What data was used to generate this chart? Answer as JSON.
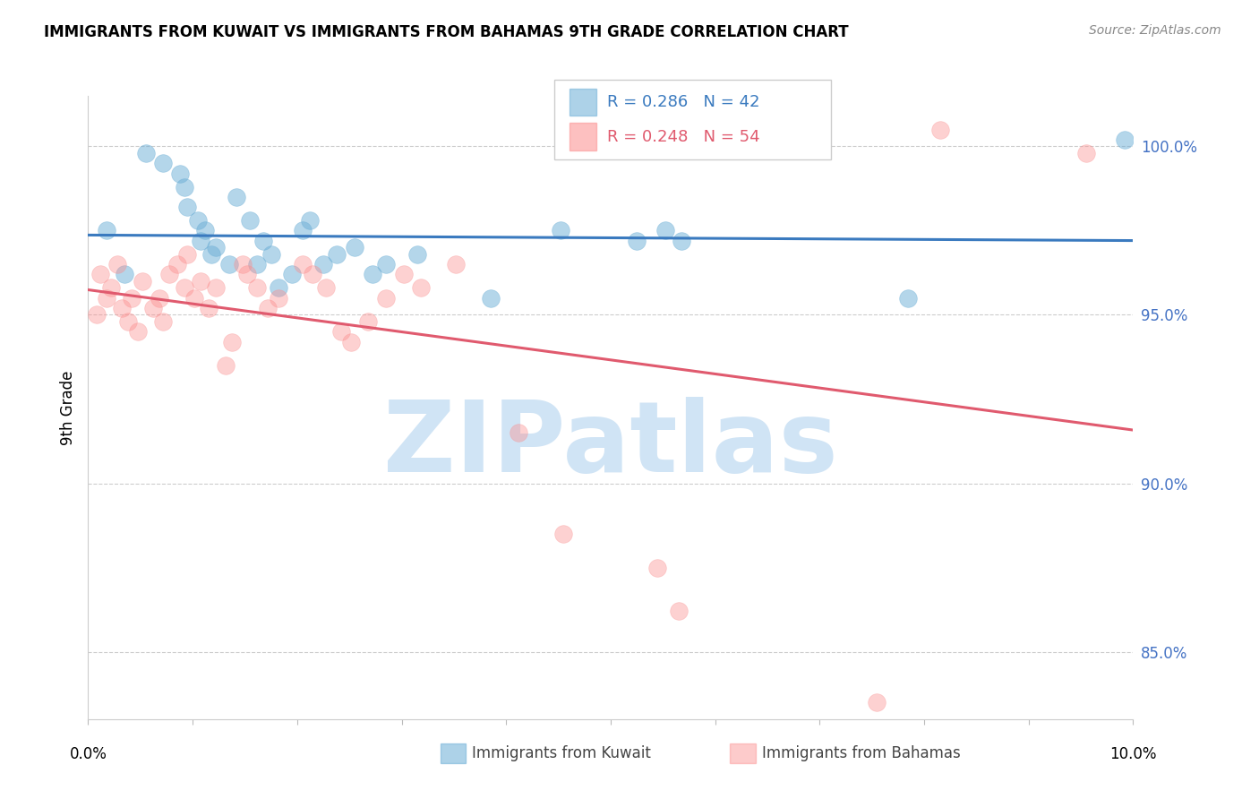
{
  "title": "IMMIGRANTS FROM KUWAIT VS IMMIGRANTS FROM BAHAMAS 9TH GRADE CORRELATION CHART",
  "source": "Source: ZipAtlas.com",
  "ylabel": "9th Grade",
  "xlim": [
    0.0,
    10.0
  ],
  "ylim": [
    83.0,
    101.5
  ],
  "yticks": [
    85.0,
    90.0,
    95.0,
    100.0
  ],
  "ytick_labels": [
    "85.0%",
    "90.0%",
    "95.0%",
    "100.0%"
  ],
  "blue_color": "#6baed6",
  "pink_color": "#fc8d8d",
  "line_blue": "#3a7abf",
  "line_pink": "#e05a6e",
  "watermark_color": "#d0e4f5",
  "blue_scatter_x": [
    0.18,
    0.35,
    0.55,
    0.72,
    0.88,
    0.92,
    0.95,
    1.05,
    1.08,
    1.12,
    1.18,
    1.22,
    1.35,
    1.42,
    1.55,
    1.62,
    1.68,
    1.75,
    1.82,
    1.95,
    2.05,
    2.12,
    2.25,
    2.38,
    2.55,
    2.72,
    2.85,
    3.15,
    3.85,
    4.52,
    5.25,
    5.52,
    5.68,
    7.85,
    9.92
  ],
  "blue_scatter_y": [
    97.5,
    96.2,
    99.8,
    99.5,
    99.2,
    98.8,
    98.2,
    97.8,
    97.2,
    97.5,
    96.8,
    97.0,
    96.5,
    98.5,
    97.8,
    96.5,
    97.2,
    96.8,
    95.8,
    96.2,
    97.5,
    97.8,
    96.5,
    96.8,
    97.0,
    96.2,
    96.5,
    96.8,
    95.5,
    97.5,
    97.2,
    97.5,
    97.2,
    95.5,
    100.2
  ],
  "pink_scatter_x": [
    0.08,
    0.12,
    0.18,
    0.22,
    0.28,
    0.32,
    0.38,
    0.42,
    0.48,
    0.52,
    0.62,
    0.68,
    0.72,
    0.78,
    0.85,
    0.92,
    0.95,
    1.02,
    1.08,
    1.15,
    1.22,
    1.32,
    1.38,
    1.48,
    1.52,
    1.62,
    1.72,
    1.82,
    2.05,
    2.15,
    2.28,
    2.42,
    2.52,
    2.68,
    2.85,
    3.02,
    3.18,
    3.52,
    4.12,
    4.55,
    5.45,
    5.65,
    7.55,
    8.15,
    9.55
  ],
  "pink_scatter_y": [
    95.0,
    96.2,
    95.5,
    95.8,
    96.5,
    95.2,
    94.8,
    95.5,
    94.5,
    96.0,
    95.2,
    95.5,
    94.8,
    96.2,
    96.5,
    95.8,
    96.8,
    95.5,
    96.0,
    95.2,
    95.8,
    93.5,
    94.2,
    96.5,
    96.2,
    95.8,
    95.2,
    95.5,
    96.5,
    96.2,
    95.8,
    94.5,
    94.2,
    94.8,
    95.5,
    96.2,
    95.8,
    96.5,
    91.5,
    88.5,
    87.5,
    86.2,
    83.5,
    100.5,
    99.8
  ]
}
